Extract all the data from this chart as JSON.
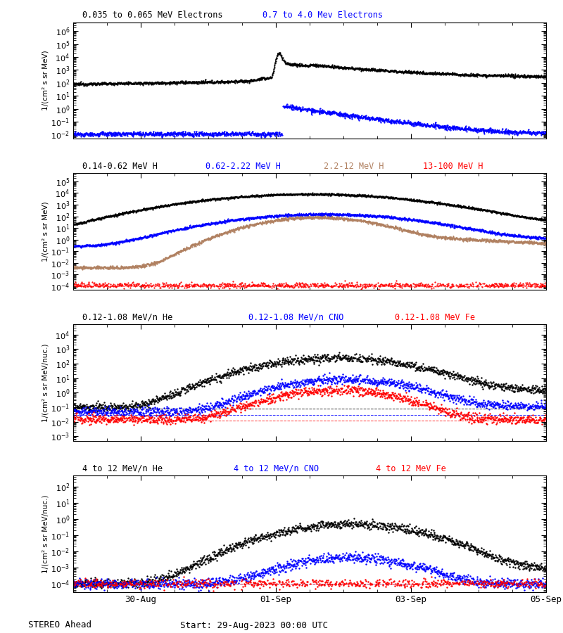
{
  "title_text": "STEREO Ahead",
  "start_text": "Start: 29-Aug-2023 00:00 UTC",
  "x_tick_labels": [
    "30-Aug",
    "01-Sep",
    "03-Sep",
    "05-Sep"
  ],
  "x_tick_positions": [
    1.0,
    3.0,
    5.0,
    7.0
  ],
  "total_days": 7.0,
  "panel1": {
    "legend_items": [
      {
        "label": "0.035 to 0.065 MeV Electrons",
        "color": "black"
      },
      {
        "label": "0.7 to 4.0 Mev Electrons",
        "color": "blue"
      }
    ],
    "ylabel": "1/(cm² s sr MeV)",
    "ylim": [
      0.005,
      5000000.0
    ],
    "ytick_labels": [
      "10⁻²",
      "1",
      "10²",
      "10⁴",
      "10⁶"
    ]
  },
  "panel2": {
    "legend_items": [
      {
        "label": "0.14-0.62 MeV H",
        "color": "black"
      },
      {
        "label": "0.62-2.22 MeV H",
        "color": "blue"
      },
      {
        "label": "2.2-12 MeV H",
        "color": "#b08060"
      },
      {
        "label": "13-100 MeV H",
        "color": "red"
      }
    ],
    "ylabel": "1/(cm² s sr MeV)",
    "ylim": [
      5e-05,
      500000.0
    ],
    "ytick_labels": [
      "10⁻⁴",
      "10⁻²",
      "1",
      "10²",
      "10⁴"
    ]
  },
  "panel3": {
    "legend_items": [
      {
        "label": "0.12-1.08 MeV/n He",
        "color": "black"
      },
      {
        "label": "0.12-1.08 MeV/n CNO",
        "color": "blue"
      },
      {
        "label": "0.12-1.08 MeV Fe",
        "color": "red"
      }
    ],
    "ylabel": "1/(cm² s sr MeV/nuc.)",
    "ylim": [
      0.0005,
      50000.0
    ],
    "ytick_labels": [
      "10⁻³",
      "10⁻²",
      "10⁻¹",
      "1",
      "10",
      "10²",
      "10³",
      "10⁴"
    ]
  },
  "panel4": {
    "legend_items": [
      {
        "label": "4 to 12 MeV/n He",
        "color": "black"
      },
      {
        "label": "4 to 12 MeV/n CNO",
        "color": "blue"
      },
      {
        "label": "4 to 12 MeV Fe",
        "color": "red"
      }
    ],
    "ylabel": "1/(cm² s sr MeV/nuc.)",
    "ylim": [
      3e-05,
      500.0
    ],
    "ytick_labels": [
      "10⁻⁴",
      "10⁻²",
      "1",
      "10²"
    ]
  },
  "background_color": "#ffffff",
  "plot_bg_color": "#ffffff"
}
